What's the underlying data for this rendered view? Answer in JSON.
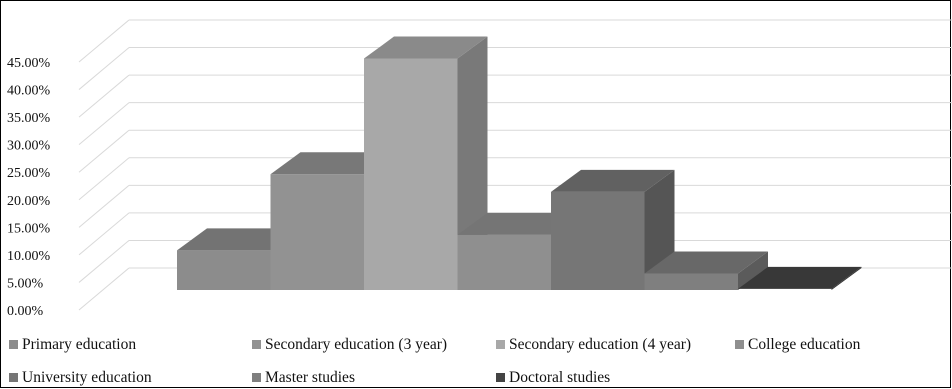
{
  "chart_data": {
    "type": "bar",
    "style": "3d",
    "title": "",
    "xlabel": "",
    "ylabel": "",
    "ylim": [
      0,
      45
    ],
    "y_tick_labels": [
      "0.00%",
      "5.00%",
      "10.00%",
      "15.00%",
      "20.00%",
      "25.00%",
      "30.00%",
      "35.00%",
      "40.00%",
      "45.00%"
    ],
    "y_unit": "%",
    "grid": true,
    "legend_position": "bottom",
    "series": [
      {
        "name": "Primary education",
        "value": 7.2,
        "color": "#8c8c8c"
      },
      {
        "name": "Secondary education (3 year)",
        "value": 21.0,
        "color": "#929292"
      },
      {
        "name": "Secondary education (4 year)",
        "value": 42.0,
        "color": "#a8a8a8"
      },
      {
        "name": "College education",
        "value": 10.0,
        "color": "#8f8f8f"
      },
      {
        "name": "University education",
        "value": 17.8,
        "color": "#767676"
      },
      {
        "name": "Master studies",
        "value": 3.0,
        "color": "#7f7f7f"
      },
      {
        "name": "Doctoral studies",
        "value": 0.2,
        "color": "#444444"
      }
    ]
  }
}
